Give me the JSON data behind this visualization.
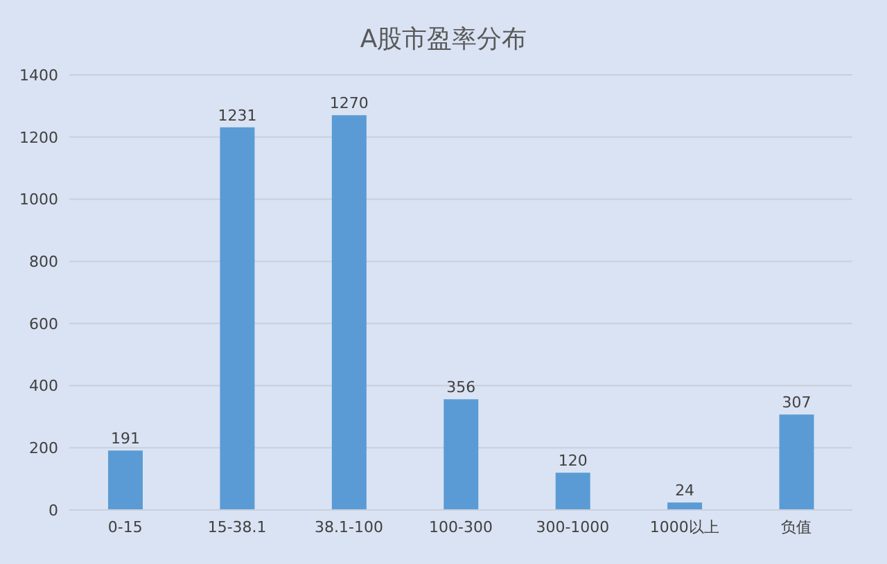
{
  "chart_data": {
    "type": "bar",
    "title": "A股市盈率分布",
    "categories": [
      "0-15",
      "15-38.1",
      "38.1-100",
      "100-300",
      "300-1000",
      "1000以上",
      "负值"
    ],
    "values": [
      191,
      1231,
      1270,
      356,
      120,
      24,
      307
    ],
    "color": "#5b9bd5",
    "ylim": [
      0,
      1400
    ],
    "yticks": [
      0,
      200,
      400,
      600,
      800,
      1000,
      1200,
      1400
    ],
    "grid": "y",
    "data_labels": true
  }
}
